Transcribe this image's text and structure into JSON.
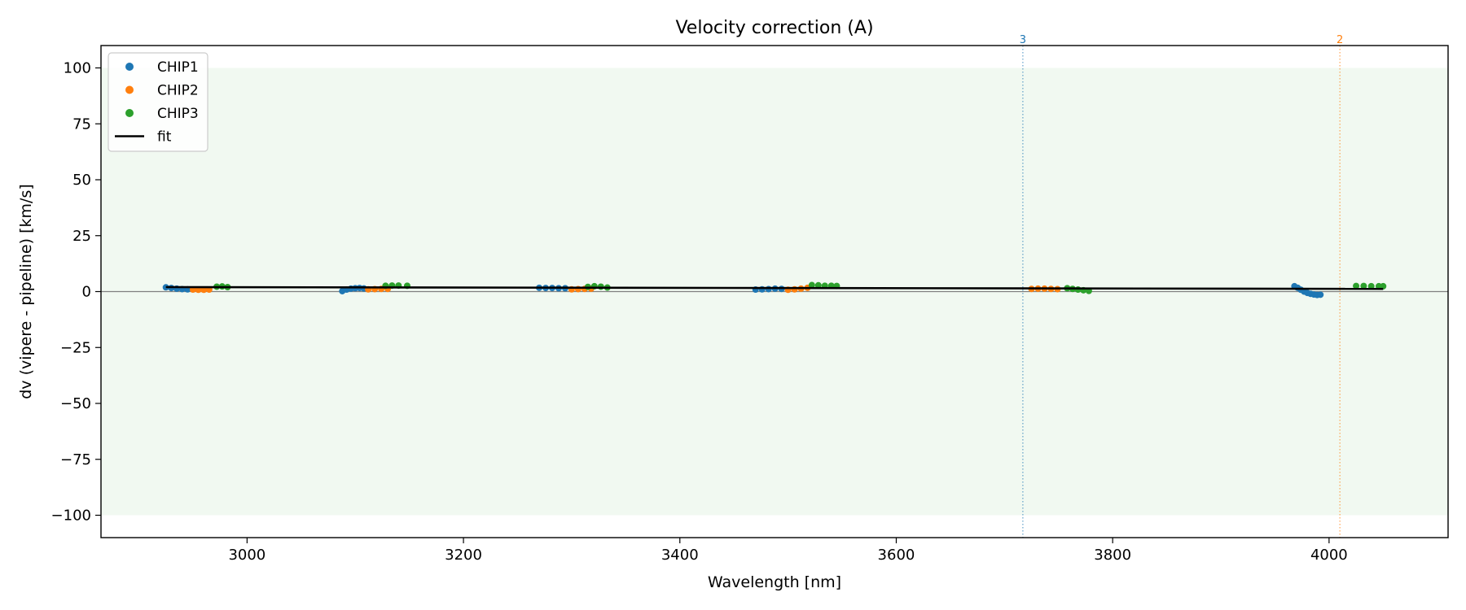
{
  "chart_data": {
    "type": "scatter",
    "title": "Velocity correction (A)",
    "xlabel": "Wavelength [nm]",
    "ylabel": "dv (vipere - pipeline) [km/s]",
    "xlim": [
      2865,
      4110
    ],
    "ylim": [
      -110,
      110
    ],
    "xticks": [
      3000,
      3200,
      3400,
      3600,
      3800,
      4000
    ],
    "yticks": [
      100,
      75,
      50,
      25,
      0,
      -25,
      -50,
      -75,
      -100
    ],
    "ytick_labels": [
      "100",
      "75",
      "50",
      "25",
      "0",
      "−25",
      "−50",
      "−75",
      "−100"
    ],
    "xtick_labels": [
      "3000",
      "3200",
      "3400",
      "3600",
      "3800",
      "4000"
    ],
    "band": {
      "y0": -100,
      "y1": 100,
      "color": "#dcefdc"
    },
    "zero_line": 0,
    "grid": false,
    "legend_position": "upper-left",
    "legend": [
      {
        "label": "CHIP1",
        "kind": "point",
        "color": "#1f77b4"
      },
      {
        "label": "CHIP2",
        "kind": "point",
        "color": "#ff7f0e"
      },
      {
        "label": "CHIP3",
        "kind": "point",
        "color": "#2ca02c"
      },
      {
        "label": "fit",
        "kind": "line",
        "color": "#000000"
      }
    ],
    "vertical_markers": [
      {
        "x": 3717,
        "label": "3",
        "color": "#1f77b4"
      },
      {
        "x": 4010,
        "label": "2",
        "color": "#ff7f0e"
      }
    ],
    "fit": {
      "x": [
        2925,
        4050
      ],
      "y": [
        2.0,
        1.2
      ],
      "color": "#000000"
    },
    "series": [
      {
        "name": "CHIP1",
        "color": "#1f77b4",
        "points": [
          [
            2925,
            1.9
          ],
          [
            2930,
            1.6
          ],
          [
            2935,
            1.3
          ],
          [
            2940,
            1.1
          ],
          [
            2945,
            1.0
          ],
          [
            3088,
            0.2
          ],
          [
            3092,
            0.9
          ],
          [
            3096,
            1.3
          ],
          [
            3100,
            1.5
          ],
          [
            3104,
            1.6
          ],
          [
            3108,
            1.4
          ],
          [
            3270,
            1.7
          ],
          [
            3276,
            1.6
          ],
          [
            3282,
            1.6
          ],
          [
            3288,
            1.5
          ],
          [
            3294,
            1.5
          ],
          [
            3470,
            0.9
          ],
          [
            3476,
            1.0
          ],
          [
            3482,
            1.1
          ],
          [
            3488,
            1.3
          ],
          [
            3494,
            1.2
          ],
          [
            3968,
            2.4
          ],
          [
            3971,
            1.7
          ],
          [
            3974,
            0.8
          ],
          [
            3977,
            0.0
          ],
          [
            3980,
            -0.6
          ],
          [
            3983,
            -1.0
          ],
          [
            3986,
            -1.3
          ],
          [
            3989,
            -1.5
          ],
          [
            3992,
            -1.4
          ]
        ]
      },
      {
        "name": "CHIP2",
        "color": "#ff7f0e",
        "points": [
          [
            2950,
            0.9
          ],
          [
            2955,
            0.8
          ],
          [
            2960,
            0.8
          ],
          [
            2965,
            0.9
          ],
          [
            3112,
            1.0
          ],
          [
            3118,
            1.1
          ],
          [
            3124,
            1.2
          ],
          [
            3130,
            1.2
          ],
          [
            3300,
            1.0
          ],
          [
            3306,
            1.1
          ],
          [
            3312,
            1.2
          ],
          [
            3318,
            1.3
          ],
          [
            3500,
            0.8
          ],
          [
            3506,
            1.0
          ],
          [
            3512,
            1.3
          ],
          [
            3518,
            1.7
          ],
          [
            3725,
            1.2
          ],
          [
            3731,
            1.3
          ],
          [
            3737,
            1.3
          ],
          [
            3743,
            1.2
          ],
          [
            3749,
            1.1
          ]
        ]
      },
      {
        "name": "CHIP3",
        "color": "#2ca02c",
        "points": [
          [
            2972,
            2.2
          ],
          [
            2977,
            2.3
          ],
          [
            2982,
            2.0
          ],
          [
            3128,
            2.6
          ],
          [
            3134,
            2.7
          ],
          [
            3140,
            2.7
          ],
          [
            3148,
            2.6
          ],
          [
            3315,
            2.1
          ],
          [
            3321,
            2.4
          ],
          [
            3327,
            2.2
          ],
          [
            3333,
            1.8
          ],
          [
            3522,
            2.9
          ],
          [
            3528,
            2.8
          ],
          [
            3534,
            2.6
          ],
          [
            3540,
            2.6
          ],
          [
            3545,
            2.5
          ],
          [
            3758,
            1.5
          ],
          [
            3763,
            1.2
          ],
          [
            3768,
            0.9
          ],
          [
            3773,
            0.6
          ],
          [
            3778,
            0.3
          ],
          [
            4025,
            2.5
          ],
          [
            4032,
            2.5
          ],
          [
            4039,
            2.4
          ],
          [
            4046,
            2.4
          ],
          [
            4050,
            2.4
          ]
        ]
      }
    ]
  }
}
